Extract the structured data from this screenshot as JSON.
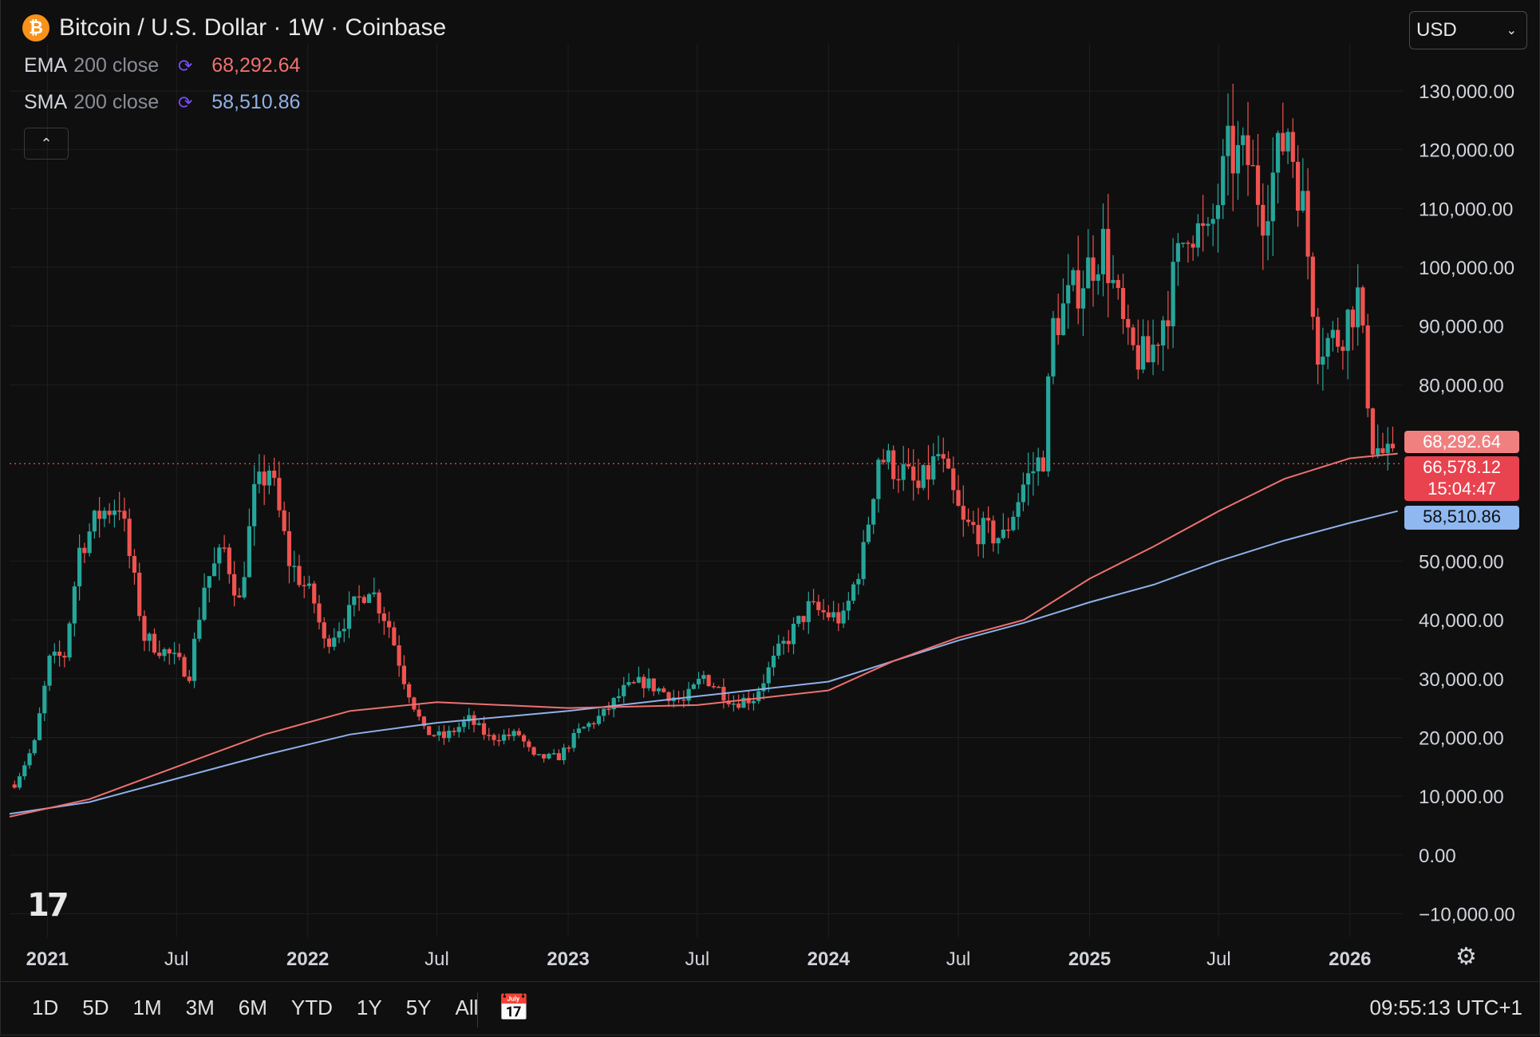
{
  "header": {
    "title": "Bitcoin / U.S. Dollar · 1W · Coinbase",
    "logo_glyph": "₿",
    "indicators": [
      {
        "name": "EMA",
        "args": "200 close",
        "value": "68,292.64",
        "color": "#f07070"
      },
      {
        "name": "SMA",
        "args": "200 close",
        "value": "58,510.86",
        "color": "#8fb1e8"
      }
    ]
  },
  "currency_select": {
    "value": "USD"
  },
  "collapse_glyph": "⌃",
  "tv_logo": "17",
  "price_tags": {
    "ema": "68,292.64",
    "last_price": "66,578.12",
    "countdown": "15:04:47",
    "sma": "58,510.86"
  },
  "ranges": [
    "1D",
    "5D",
    "1M",
    "3M",
    "6M",
    "YTD",
    "1Y",
    "5Y",
    "All"
  ],
  "clock": "09:55:13 UTC+1",
  "colors": {
    "up": "#26a69a",
    "down": "#ef5350",
    "ema": "#f07070",
    "sma": "#8fb1e8",
    "grid": "#1f1f1f",
    "text": "#d1d4dc"
  },
  "chart_data": {
    "type": "candlestick",
    "title": "Bitcoin / U.S. Dollar · 1W · Coinbase",
    "y_ticks": [
      -10000,
      0,
      10000,
      20000,
      30000,
      40000,
      50000,
      80000,
      90000,
      100000,
      110000,
      120000,
      130000
    ],
    "y_tick_labels": [
      "−10,000.00",
      "0.00",
      "10,000.00",
      "20,000.00",
      "30,000.00",
      "40,000.00",
      "50,000.00",
      "80,000.00",
      "90,000.00",
      "100,000.00",
      "110,000.00",
      "120,000.00",
      "130,000.00"
    ],
    "ylim": [
      -14000,
      138000
    ],
    "x_range": [
      "2020-11-09",
      "2026-03-16"
    ],
    "x_ticks": [
      {
        "date": "2021-01-01",
        "label": "2021",
        "bold": true
      },
      {
        "date": "2021-07-01",
        "label": "Jul",
        "bold": false
      },
      {
        "date": "2022-01-01",
        "label": "2022",
        "bold": true
      },
      {
        "date": "2022-07-01",
        "label": "Jul",
        "bold": false
      },
      {
        "date": "2023-01-01",
        "label": "2023",
        "bold": true
      },
      {
        "date": "2023-07-01",
        "label": "Jul",
        "bold": false
      },
      {
        "date": "2024-01-01",
        "label": "2024",
        "bold": true
      },
      {
        "date": "2024-07-01",
        "label": "Jul",
        "bold": false
      },
      {
        "date": "2025-01-01",
        "label": "2025",
        "bold": true
      },
      {
        "date": "2025-07-01",
        "label": "Jul",
        "bold": false
      },
      {
        "date": "2026-01-01",
        "label": "2026",
        "bold": true
      }
    ],
    "last_price": 66578.12,
    "close_path": [
      [
        "2020-11-16",
        12000
      ],
      [
        "2020-12-14",
        19000
      ],
      [
        "2021-01-04",
        33000
      ],
      [
        "2021-01-25",
        34000
      ],
      [
        "2021-02-15",
        52000
      ],
      [
        "2021-03-15",
        58000
      ],
      [
        "2021-04-12",
        60000
      ],
      [
        "2021-05-17",
        37000
      ],
      [
        "2021-06-21",
        34000
      ],
      [
        "2021-07-19",
        31000
      ],
      [
        "2021-08-09",
        46000
      ],
      [
        "2021-09-06",
        52000
      ],
      [
        "2021-09-27",
        43000
      ],
      [
        "2021-10-18",
        61000
      ],
      [
        "2021-11-08",
        66000
      ],
      [
        "2021-12-06",
        50000
      ],
      [
        "2022-01-10",
        43000
      ],
      [
        "2022-01-24",
        36000
      ],
      [
        "2022-02-28",
        41000
      ],
      [
        "2022-03-28",
        46000
      ],
      [
        "2022-04-25",
        39000
      ],
      [
        "2022-05-16",
        30000
      ],
      [
        "2022-06-13",
        21000
      ],
      [
        "2022-07-11",
        20000
      ],
      [
        "2022-08-15",
        23000
      ],
      [
        "2022-09-12",
        20000
      ],
      [
        "2022-10-24",
        20500
      ],
      [
        "2022-11-14",
        16500
      ],
      [
        "2022-12-19",
        16700
      ],
      [
        "2023-01-16",
        21000
      ],
      [
        "2023-02-20",
        24000
      ],
      [
        "2023-03-20",
        28000
      ],
      [
        "2023-04-17",
        29500
      ],
      [
        "2023-06-12",
        26000
      ],
      [
        "2023-07-10",
        30500
      ],
      [
        "2023-08-21",
        26000
      ],
      [
        "2023-09-18",
        26800
      ],
      [
        "2023-10-23",
        34500
      ],
      [
        "2023-12-04",
        42000
      ],
      [
        "2024-01-22",
        40000
      ],
      [
        "2024-02-19",
        51500
      ],
      [
        "2024-03-11",
        68000
      ],
      [
        "2024-04-15",
        65000
      ],
      [
        "2024-05-06",
        62000
      ],
      [
        "2024-06-03",
        68000
      ],
      [
        "2024-07-08",
        56000
      ],
      [
        "2024-08-05",
        55000
      ],
      [
        "2024-09-02",
        54000
      ],
      [
        "2024-09-30",
        63000
      ],
      [
        "2024-10-28",
        68000
      ],
      [
        "2024-11-11",
        90000
      ],
      [
        "2024-12-16",
        97000
      ],
      [
        "2025-01-20",
        104000
      ],
      [
        "2025-02-24",
        86000
      ],
      [
        "2025-03-24",
        84000
      ],
      [
        "2025-04-21",
        94000
      ],
      [
        "2025-05-19",
        108000
      ],
      [
        "2025-06-16",
        104000
      ],
      [
        "2025-07-14",
        119000
      ],
      [
        "2025-08-11",
        118000
      ],
      [
        "2025-09-01",
        110000
      ],
      [
        "2025-10-06",
        124000
      ],
      [
        "2025-10-27",
        110000
      ],
      [
        "2025-11-17",
        87000
      ],
      [
        "2025-12-15",
        88000
      ],
      [
        "2026-01-12",
        95000
      ],
      [
        "2026-02-02",
        70000
      ],
      [
        "2026-03-02",
        66578
      ]
    ],
    "ema200_path": [
      [
        "2020-11-09",
        6500
      ],
      [
        "2021-03-01",
        9500
      ],
      [
        "2021-07-01",
        15000
      ],
      [
        "2021-11-01",
        20500
      ],
      [
        "2022-03-01",
        24500
      ],
      [
        "2022-07-01",
        26000
      ],
      [
        "2023-01-01",
        25000
      ],
      [
        "2023-07-01",
        25500
      ],
      [
        "2024-01-01",
        28000
      ],
      [
        "2024-04-01",
        33000
      ],
      [
        "2024-07-01",
        37000
      ],
      [
        "2024-10-01",
        40000
      ],
      [
        "2025-01-01",
        47000
      ],
      [
        "2025-04-01",
        52500
      ],
      [
        "2025-07-01",
        58500
      ],
      [
        "2025-10-01",
        64000
      ],
      [
        "2026-01-01",
        67500
      ],
      [
        "2026-03-09",
        68293
      ]
    ],
    "sma200_path": [
      [
        "2020-11-09",
        7000
      ],
      [
        "2021-03-01",
        9000
      ],
      [
        "2021-07-01",
        13000
      ],
      [
        "2021-11-01",
        17000
      ],
      [
        "2022-03-01",
        20500
      ],
      [
        "2022-07-01",
        22500
      ],
      [
        "2023-01-01",
        24500
      ],
      [
        "2023-07-01",
        27000
      ],
      [
        "2024-01-01",
        29500
      ],
      [
        "2024-04-01",
        33000
      ],
      [
        "2024-07-01",
        36500
      ],
      [
        "2024-10-01",
        39500
      ],
      [
        "2025-01-01",
        43000
      ],
      [
        "2025-04-01",
        46000
      ],
      [
        "2025-07-01",
        50000
      ],
      [
        "2025-10-01",
        53500
      ],
      [
        "2026-01-01",
        56500
      ],
      [
        "2026-03-09",
        58511
      ]
    ]
  }
}
